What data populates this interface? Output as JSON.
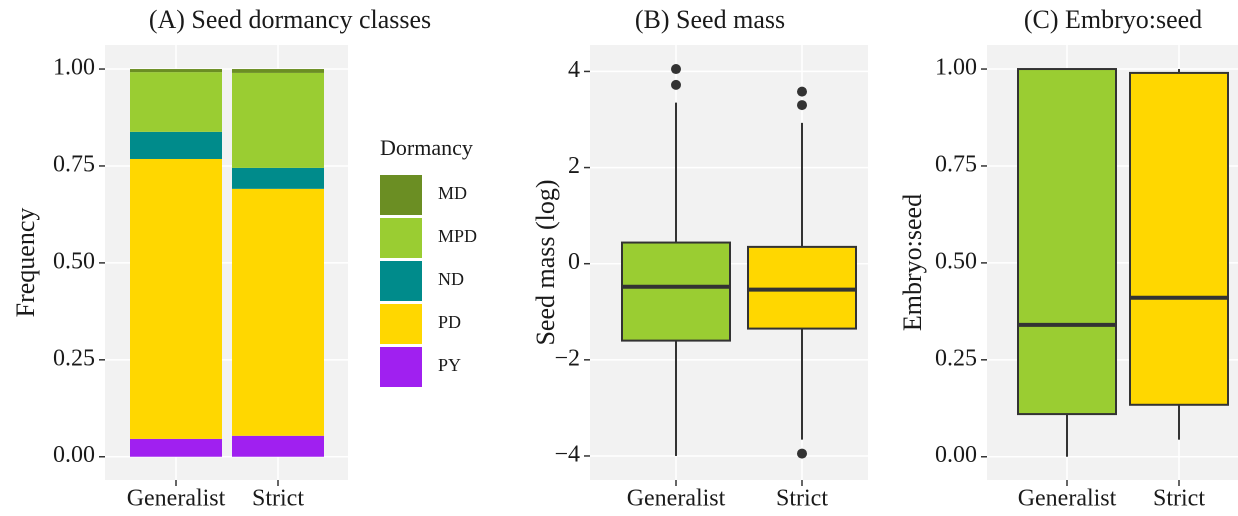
{
  "chart_data": [
    {
      "type": "stacked_bar",
      "title": "(A) Seed dormancy classes",
      "ylabel": "Frequency",
      "categories": [
        "Generalist",
        "Strict"
      ],
      "legend_title": "Dormancy",
      "series": [
        {
          "name": "PY",
          "color": "#a020f0",
          "values": [
            0.046,
            0.054
          ]
        },
        {
          "name": "PD",
          "color": "#ffd700",
          "values": [
            0.722,
            0.637
          ]
        },
        {
          "name": "ND",
          "color": "#008b8b",
          "values": [
            0.07,
            0.054
          ]
        },
        {
          "name": "MPD",
          "color": "#9acd32",
          "values": [
            0.154,
            0.245
          ]
        },
        {
          "name": "MD",
          "color": "#6b8e23",
          "values": [
            0.008,
            0.01
          ]
        }
      ],
      "ylim": [
        -0.06,
        1.062
      ],
      "yticks": [
        {
          "value": 0,
          "label": "0.00"
        },
        {
          "value": 0.25,
          "label": "0.25"
        },
        {
          "value": 0.5,
          "label": "0.50"
        },
        {
          "value": 0.75,
          "label": "0.75"
        },
        {
          "value": 1,
          "label": "1.00"
        }
      ],
      "grid": true
    },
    {
      "type": "box",
      "title": "(B) Seed mass",
      "ylabel": "Seed mass (log)",
      "categories": [
        "Generalist",
        "Strict"
      ],
      "colors": [
        "#9acd32",
        "#ffd700"
      ],
      "boxes": [
        {
          "whisker_low": -4.0,
          "q1": -1.6,
          "median": -0.48,
          "q3": 0.44,
          "whisker_high": 3.35,
          "outliers": [
            4.05,
            3.72
          ]
        },
        {
          "whisker_low": -3.66,
          "q1": -1.35,
          "median": -0.54,
          "q3": 0.35,
          "whisker_high": 2.93,
          "outliers": [
            3.58,
            3.3,
            -3.95
          ]
        }
      ],
      "ylim": [
        -4.5,
        4.55
      ],
      "yticks": [
        {
          "value": -4,
          "label": "−4"
        },
        {
          "value": -2,
          "label": "−2"
        },
        0,
        2,
        4
      ],
      "grid": true
    },
    {
      "type": "box",
      "title": "(C) Embryo:seed",
      "ylabel": "Embryo:seed",
      "categories": [
        "Generalist",
        "Strict"
      ],
      "colors": [
        "#9acd32",
        "#ffd700"
      ],
      "boxes": [
        {
          "whisker_low": 0.0,
          "q1": 0.11,
          "median": 0.34,
          "q3": 1.0,
          "whisker_high": 1.0,
          "outliers": []
        },
        {
          "whisker_low": 0.044,
          "q1": 0.134,
          "median": 0.41,
          "q3": 0.99,
          "whisker_high": 1.0,
          "outliers": []
        }
      ],
      "ylim": [
        -0.06,
        1.062
      ],
      "yticks": [
        {
          "value": 0,
          "label": "0.00"
        },
        {
          "value": 0.25,
          "label": "0.25"
        },
        {
          "value": 0.5,
          "label": "0.50"
        },
        {
          "value": 0.75,
          "label": "0.75"
        },
        {
          "value": 1,
          "label": "1.00"
        }
      ],
      "grid": true
    }
  ]
}
